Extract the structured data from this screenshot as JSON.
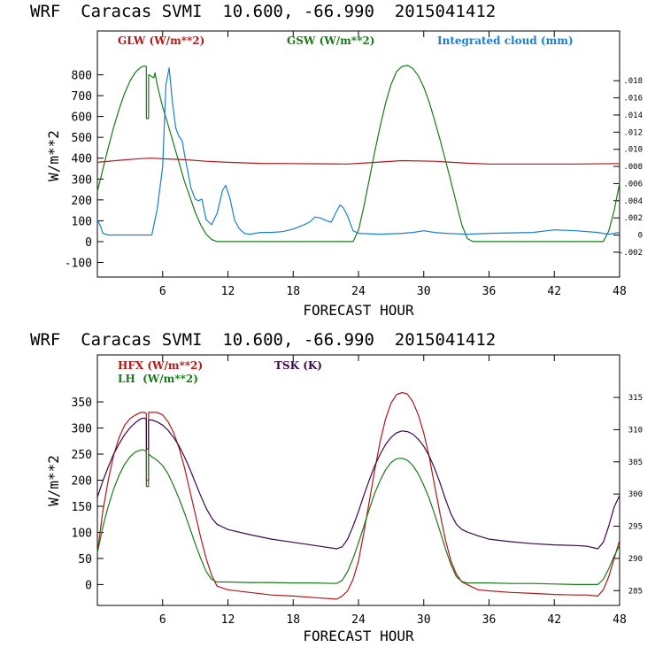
{
  "colors": {
    "red": "#b01818",
    "green": "#1a7a1a",
    "blue": "#1a7fd0",
    "purple": "#3a0a4a",
    "axis": "#000000"
  },
  "chart_data": [
    {
      "type": "line",
      "title": "WRF  Caracas SVMI  10.600, -66.990  2015041412",
      "xlabel": "FORECAST HOUR",
      "ylabel": "W/m**2",
      "xlim": [
        0,
        48
      ],
      "ylim": [
        -170,
        1010
      ],
      "y2lim": [
        -0.0049,
        0.0238
      ],
      "xticks": [
        6,
        12,
        18,
        24,
        30,
        36,
        42,
        48
      ],
      "yticks": [
        -100,
        0,
        100,
        200,
        300,
        400,
        500,
        600,
        700,
        800
      ],
      "y2ticks": [
        -0.002,
        0,
        0.002,
        0.004,
        0.006,
        0.008,
        0.01,
        0.012,
        0.014,
        0.016,
        0.018
      ],
      "y2ticklabels": [
        "-.002",
        "0",
        ".002",
        ".004",
        ".006",
        ".008",
        ".010",
        ".012",
        ".014",
        ".016",
        ".018"
      ],
      "legend": [
        {
          "label": "GLW (W/m**2)",
          "color": "#b01818",
          "pos": "top-left"
        },
        {
          "label": "GSW (W/m**2)",
          "color": "#1a7a1a",
          "pos": "top-center"
        },
        {
          "label": "Integrated cloud (mm)",
          "color": "#1a7fd0",
          "pos": "top-right"
        }
      ],
      "series": [
        {
          "name": "GLW (W/m**2)",
          "color": "#b01818",
          "axis": "left",
          "x": [
            0,
            2,
            4,
            5,
            6,
            8,
            10,
            12,
            15,
            18,
            21,
            23,
            25,
            28,
            31,
            34,
            36,
            40,
            44,
            48
          ],
          "y": [
            380,
            390,
            398,
            400,
            397,
            393,
            385,
            380,
            375,
            374,
            373,
            372,
            378,
            388,
            385,
            376,
            372,
            372,
            372,
            374
          ]
        },
        {
          "name": "GSW (W/m**2)",
          "color": "#1a7a1a",
          "axis": "left",
          "x": [
            0,
            0.5,
            1,
            1.5,
            2,
            2.5,
            3,
            3.5,
            4,
            4.3,
            4.5,
            4.51,
            4.7,
            4.71,
            5.2,
            5.3,
            5.5,
            6,
            6.5,
            7,
            7.5,
            8,
            8.5,
            9,
            9.5,
            10,
            10.5,
            11,
            11.5,
            12,
            13,
            14,
            15,
            16,
            17,
            18,
            19,
            20,
            21,
            22,
            22.5,
            23,
            23.5,
            24,
            24.5,
            25,
            25.5,
            26,
            26.5,
            27,
            27.5,
            28,
            28.5,
            29,
            29.5,
            30,
            30.5,
            31,
            31.5,
            32,
            32.5,
            33,
            33.5,
            34,
            34.5,
            35,
            40,
            45,
            46.5,
            47,
            47.5,
            48
          ],
          "y": [
            240,
            345,
            450,
            548,
            635,
            710,
            770,
            812,
            836,
            842,
            840,
            590,
            590,
            800,
            785,
            810,
            752,
            645,
            560,
            470,
            380,
            290,
            215,
            140,
            80,
            35,
            10,
            0,
            0,
            0,
            0,
            0,
            0,
            0,
            0,
            0,
            0,
            0,
            0,
            0,
            0,
            0,
            0,
            55,
            168,
            300,
            432,
            555,
            665,
            755,
            815,
            840,
            845,
            830,
            795,
            740,
            668,
            582,
            488,
            390,
            288,
            184,
            80,
            15,
            0,
            0,
            0,
            0,
            0,
            50,
            150,
            280
          ]
        },
        {
          "name": "Integrated cloud (mm)",
          "color": "#1a7fd0",
          "axis": "right",
          "x": [
            0,
            0.3,
            0.5,
            1,
            2,
            3,
            4,
            5,
            5.5,
            6,
            6.3,
            6.6,
            6.9,
            7.2,
            7.5,
            7.8,
            8,
            8.3,
            8.6,
            9,
            9.3,
            9.6,
            9.8,
            10,
            10.5,
            11,
            11.5,
            11.8,
            12.2,
            12.6,
            13,
            13.5,
            14,
            15,
            16,
            17,
            18,
            19,
            19.5,
            20,
            20.5,
            21,
            21.5,
            22,
            22.3,
            22.6,
            23,
            23.5,
            24,
            26,
            28,
            29,
            30,
            31,
            32,
            34,
            36,
            40,
            42,
            44,
            46,
            47,
            48
          ],
          "y": [
            0.0018,
            0.001,
            0.0002,
            0,
            0,
            0,
            0,
            0,
            0.003,
            0.008,
            0.0175,
            0.0195,
            0.0155,
            0.0125,
            0.0115,
            0.011,
            0.0095,
            0.0075,
            0.0055,
            0.0042,
            0.004,
            0.0042,
            0.003,
            0.0018,
            0.0012,
            0.0025,
            0.0052,
            0.0058,
            0.0042,
            0.0018,
            0.0008,
            0.0002,
            0.0001,
            0.0003,
            0.0003,
            0.0004,
            0.0007,
            0.0012,
            0.0015,
            0.0021,
            0.002,
            0.0017,
            0.0015,
            0.0028,
            0.0035,
            0.0032,
            0.0022,
            0.0005,
            0.0002,
            0.0001,
            0.0002,
            0.0003,
            0.0005,
            0.0003,
            0.0002,
            0.0001,
            0.0002,
            0.0003,
            0.0006,
            0.0005,
            0.0003,
            0.0001,
            0.0003
          ]
        }
      ]
    },
    {
      "type": "line",
      "title": "WRF  Caracas SVMI  10.600, -66.990  2015041412",
      "xlabel": "FORECAST HOUR",
      "ylabel": "W/m**2",
      "xlim": [
        0,
        48
      ],
      "ylim": [
        -40,
        440
      ],
      "y2lim": [
        282.7,
        321.6
      ],
      "xticks": [
        6,
        12,
        18,
        24,
        30,
        36,
        42,
        48
      ],
      "yticks": [
        0,
        50,
        100,
        150,
        200,
        250,
        300,
        350
      ],
      "y2ticks": [
        285,
        290,
        295,
        300,
        305,
        310,
        315
      ],
      "y2ticklabels": [
        "285",
        "290",
        "295",
        "300",
        "305",
        "310",
        "315"
      ],
      "legend": [
        {
          "label": "HFX (W/m**2)",
          "color": "#b01818",
          "pos": "top-left"
        },
        {
          "label": "TSK (K)",
          "color": "#3a0a4a",
          "pos": "top-center"
        },
        {
          "label": "LH  (W/m**2)",
          "color": "#1a7a1a",
          "pos": "top-left-2"
        }
      ],
      "series": [
        {
          "name": "HFX (W/m**2)",
          "color": "#b01818",
          "axis": "left",
          "x": [
            0,
            0.5,
            1,
            1.5,
            2,
            2.5,
            3,
            3.5,
            4,
            4.3,
            4.5,
            4.51,
            4.7,
            4.71,
            5,
            5.5,
            6,
            6.5,
            7,
            7.5,
            8,
            8.5,
            9,
            9.5,
            10,
            10.5,
            11,
            12,
            14,
            16,
            18,
            20,
            22,
            22.5,
            23,
            23.5,
            24,
            24.5,
            25,
            25.5,
            26,
            26.5,
            27,
            27.5,
            28,
            28.5,
            29,
            29.5,
            30,
            30.5,
            31,
            31.5,
            32,
            32.5,
            33,
            33.5,
            34,
            34.5,
            35,
            36,
            38,
            40,
            42,
            44,
            45,
            46,
            46.5,
            47,
            47.5,
            48
          ],
          "y": [
            60,
            140,
            200,
            248,
            282,
            305,
            318,
            325,
            330,
            330,
            328,
            200,
            200,
            330,
            330,
            330,
            325,
            312,
            292,
            262,
            225,
            180,
            135,
            90,
            50,
            18,
            -3,
            -10,
            -15,
            -20,
            -22,
            -25,
            -28,
            -22,
            -12,
            10,
            45,
            100,
            160,
            220,
            275,
            318,
            348,
            364,
            368,
            365,
            350,
            325,
            290,
            245,
            190,
            135,
            85,
            45,
            20,
            5,
            0,
            -5,
            -10,
            -12,
            -15,
            -17,
            -19,
            -20,
            -20,
            -22,
            -10,
            15,
            50,
            85
          ]
        },
        {
          "name": "LH  (W/m**2)",
          "color": "#1a7a1a",
          "axis": "left",
          "x": [
            0,
            0.5,
            1,
            1.5,
            2,
            2.5,
            3,
            3.5,
            4,
            4.3,
            4.5,
            4.51,
            4.7,
            4.71,
            5,
            5.5,
            6,
            6.5,
            7,
            7.5,
            8,
            8.5,
            9,
            9.5,
            10,
            10.5,
            11,
            12,
            14,
            16,
            18,
            20,
            22,
            22.5,
            23,
            23.5,
            24,
            24.5,
            25,
            25.5,
            26,
            26.5,
            27,
            27.5,
            28,
            28.5,
            29,
            29.5,
            30,
            30.5,
            31,
            31.5,
            32,
            32.5,
            33,
            33.5,
            34,
            34.5,
            35,
            36,
            38,
            40,
            42,
            44,
            45,
            46,
            46.5,
            47,
            47.5,
            48
          ],
          "y": [
            60,
            110,
            150,
            183,
            210,
            230,
            245,
            254,
            258,
            258,
            255,
            188,
            188,
            250,
            245,
            238,
            228,
            212,
            190,
            165,
            138,
            108,
            78,
            50,
            25,
            10,
            5,
            5,
            4,
            4,
            3,
            3,
            2,
            8,
            25,
            50,
            80,
            112,
            145,
            175,
            200,
            220,
            234,
            241,
            242,
            238,
            228,
            212,
            190,
            165,
            135,
            102,
            68,
            38,
            15,
            6,
            3,
            3,
            3,
            3,
            2,
            2,
            1,
            0,
            0,
            0,
            10,
            30,
            55,
            75
          ]
        },
        {
          "name": "TSK (K)",
          "color": "#3a0a4a",
          "axis": "right",
          "x": [
            0,
            0.5,
            1,
            1.5,
            2,
            2.5,
            3,
            3.5,
            4,
            4.3,
            4.5,
            4.51,
            4.7,
            4.71,
            5,
            5.5,
            6,
            6.5,
            7,
            7.5,
            8,
            8.5,
            9,
            9.5,
            10,
            10.5,
            11,
            12,
            14,
            16,
            18,
            20,
            22,
            22.5,
            23,
            23.5,
            24,
            24.5,
            25,
            25.5,
            26,
            26.5,
            27,
            27.5,
            28,
            28.5,
            29,
            29.5,
            30,
            30.5,
            31,
            31.5,
            32,
            32.5,
            33,
            33.5,
            34,
            34.5,
            35,
            36,
            38,
            40,
            42,
            44,
            45,
            46,
            46.5,
            47,
            47.5,
            48
          ],
          "y": [
            299.5,
            302,
            304.2,
            306.2,
            307.8,
            309.2,
            310.3,
            311.1,
            311.7,
            311.8,
            311.6,
            307.0,
            307.0,
            311.5,
            311.5,
            311.2,
            310.7,
            309.9,
            308.8,
            307.5,
            305.8,
            303.9,
            301.8,
            299.7,
            297.8,
            296.3,
            295.3,
            294.5,
            293.7,
            293.0,
            292.5,
            292.0,
            291.5,
            291.8,
            293.0,
            295.0,
            297.3,
            299.8,
            302.2,
            304.4,
            306.2,
            307.7,
            308.8,
            309.5,
            309.8,
            309.7,
            309.3,
            308.5,
            307.4,
            305.9,
            304.0,
            301.7,
            299.2,
            296.9,
            295.3,
            294.5,
            294.1,
            293.8,
            293.5,
            293.0,
            292.6,
            292.3,
            292.1,
            292.0,
            291.9,
            291.5,
            292.5,
            295.0,
            298.0,
            299.8
          ]
        }
      ]
    }
  ]
}
